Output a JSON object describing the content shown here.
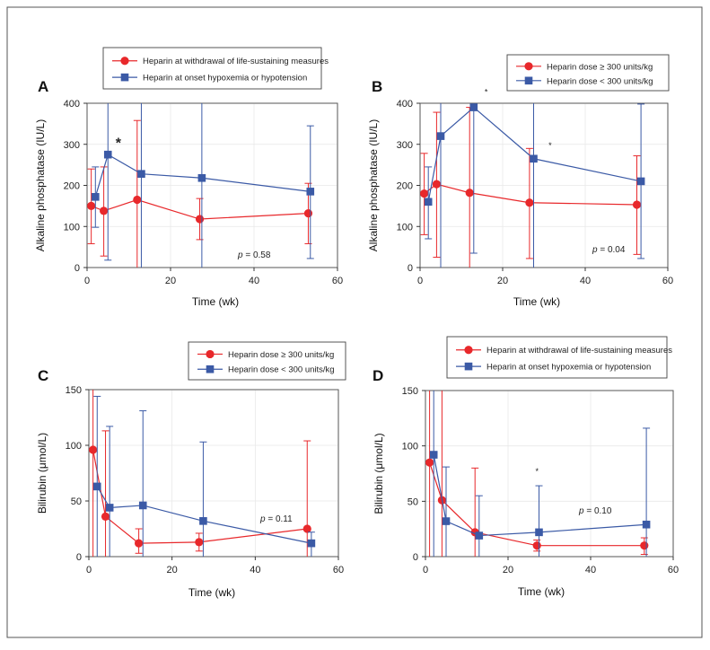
{
  "colors": {
    "red": "#e8282b",
    "blue": "#3b5aa6",
    "axis": "#222222",
    "frame": "#555555"
  },
  "chart_data": [
    {
      "panel": "A",
      "type": "line",
      "xlabel": "Time (wk)",
      "ylabel": "Alkaline phosphatase (IU/L)",
      "xlim": [
        0,
        60
      ],
      "ylim": [
        0,
        400
      ],
      "xticks": [
        0,
        20,
        40,
        60
      ],
      "yticks": [
        0,
        100,
        200,
        300,
        400
      ],
      "legend": [
        "Heparin at withdrawal of life-sustaining measures",
        "Heparin at onset hypoxemia or hypotension"
      ],
      "p_label": "p",
      "p_value": " = 0.58",
      "annotations": [
        {
          "text": "*",
          "x": 7.5,
          "y": 305,
          "size": "large"
        }
      ],
      "series": [
        {
          "name": "Heparin at withdrawal of life-sustaining measures",
          "color": "red",
          "marker": "circle",
          "x": [
            1,
            4,
            12,
            27,
            53
          ],
          "y": [
            150,
            138,
            165,
            118,
            132
          ],
          "lo": [
            58,
            28,
            0,
            68,
            58
          ],
          "hi": [
            240,
            245,
            358,
            168,
            205
          ]
        },
        {
          "name": "Heparin at onset hypoxemia or hypotension",
          "color": "blue",
          "marker": "square",
          "x": [
            2,
            5,
            13,
            27.5,
            53.5
          ],
          "y": [
            172,
            275,
            228,
            218,
            185
          ],
          "lo": [
            98,
            18,
            0,
            0,
            22
          ],
          "hi": [
            245,
            400,
            400,
            400,
            345
          ]
        }
      ]
    },
    {
      "panel": "B",
      "type": "line",
      "xlabel": "Time (wk)",
      "ylabel": "Alkaline phosphatase (IU/L)",
      "xlim": [
        0,
        60
      ],
      "ylim": [
        0,
        400
      ],
      "xticks": [
        0,
        20,
        40,
        60
      ],
      "yticks": [
        0,
        100,
        200,
        300,
        400
      ],
      "legend": [
        "Heparin dose ≥ 300 units/kg",
        "Heparin dose < 300 units/kg"
      ],
      "p_label": "p",
      "p_value": " = 0.04",
      "annotations": [
        {
          "text": "*",
          "x": 16,
          "y": 430,
          "size": "small"
        },
        {
          "text": "*",
          "x": 31.5,
          "y": 300,
          "size": "small"
        }
      ],
      "series": [
        {
          "name": "Heparin dose ≥ 300 units/kg",
          "color": "red",
          "marker": "circle",
          "x": [
            1,
            4,
            12,
            26.5,
            52.5
          ],
          "y": [
            180,
            203,
            182,
            158,
            153
          ],
          "lo": [
            80,
            25,
            0,
            22,
            32
          ],
          "hi": [
            278,
            378,
            390,
            290,
            272
          ]
        },
        {
          "name": "Heparin dose < 300 units/kg",
          "color": "blue",
          "marker": "square",
          "x": [
            2,
            5,
            13,
            27.5,
            53.5
          ],
          "y": [
            160,
            320,
            390,
            265,
            210
          ],
          "lo": [
            70,
            0,
            35,
            0,
            22
          ],
          "hi": [
            245,
            400,
            400,
            400,
            398
          ]
        }
      ]
    },
    {
      "panel": "C",
      "type": "line",
      "xlabel": "Time (wk)",
      "ylabel": "Bilirubin (μmol/L)",
      "xlim": [
        0,
        60
      ],
      "ylim": [
        0,
        150
      ],
      "xticks": [
        0,
        20,
        40,
        60
      ],
      "yticks": [
        0,
        50,
        100,
        150
      ],
      "legend": [
        "Heparin dose ≥ 300 units/kg",
        "Heparin dose < 300 units/kg"
      ],
      "p_label": "p",
      "p_value": " = 0.11",
      "annotations": [],
      "series": [
        {
          "name": "Heparin dose ≥ 300 units/kg",
          "color": "red",
          "marker": "circle",
          "x": [
            1,
            4,
            12,
            26.5,
            52.5
          ],
          "y": [
            96,
            36,
            12,
            13,
            25
          ],
          "lo": [
            0,
            0,
            3,
            5,
            0
          ],
          "hi": [
            150,
            113,
            25,
            21,
            104
          ]
        },
        {
          "name": "Heparin dose < 300 units/kg",
          "color": "blue",
          "marker": "square",
          "x": [
            2,
            5,
            13,
            27.5,
            53.5
          ],
          "y": [
            63,
            44,
            46,
            32,
            12
          ],
          "lo": [
            0,
            0,
            0,
            0,
            0
          ],
          "hi": [
            144,
            117,
            131,
            103,
            22
          ]
        }
      ]
    },
    {
      "panel": "D",
      "type": "line",
      "xlabel": "Time (wk)",
      "ylabel": "Bilirubin (μmol/L)",
      "xlim": [
        0,
        60
      ],
      "ylim": [
        0,
        150
      ],
      "xticks": [
        0,
        20,
        40,
        60
      ],
      "yticks": [
        0,
        50,
        100,
        150
      ],
      "legend": [
        "Heparin at withdrawal of life-sustaining measures",
        "Heparin at onset hypoxemia or hypotension"
      ],
      "p_label": "p",
      "p_value": " = 0.10",
      "annotations": [
        {
          "text": "*",
          "x": 27,
          "y": 78,
          "size": "small"
        }
      ],
      "series": [
        {
          "name": "Heparin at withdrawal of life-sustaining measures",
          "color": "red",
          "marker": "circle",
          "x": [
            1,
            4,
            12,
            27,
            53
          ],
          "y": [
            85,
            51,
            22,
            10,
            10
          ],
          "lo": [
            0,
            0,
            0,
            5,
            2
          ],
          "hi": [
            150,
            150,
            80,
            15,
            17
          ]
        },
        {
          "name": "Heparin at onset hypoxemia or hypotension",
          "color": "blue",
          "marker": "square",
          "x": [
            2,
            5,
            13,
            27.5,
            53.5
          ],
          "y": [
            92,
            32,
            19,
            22,
            29
          ],
          "lo": [
            0,
            0,
            0,
            0,
            0
          ],
          "hi": [
            150,
            81,
            55,
            64,
            116
          ]
        }
      ]
    }
  ]
}
